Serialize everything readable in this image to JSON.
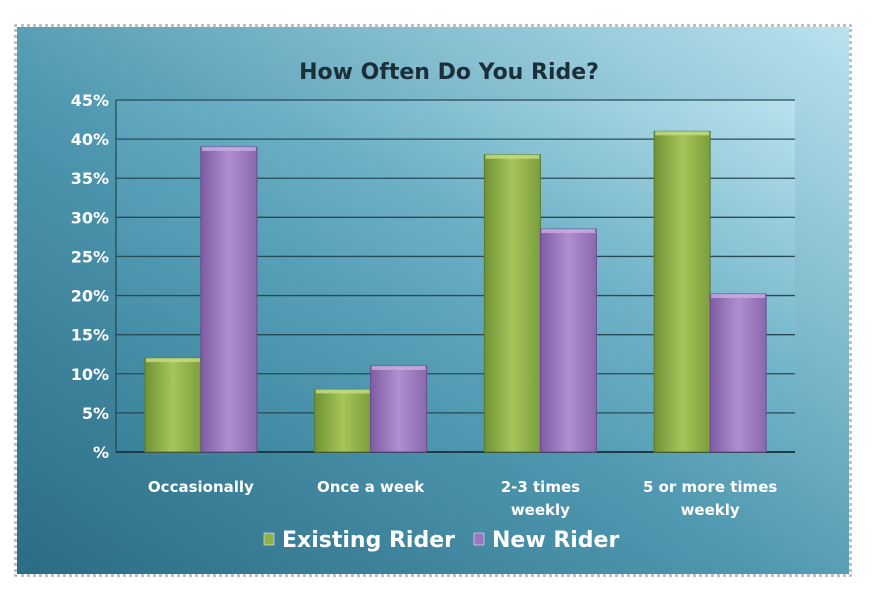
{
  "chart_data": {
    "type": "bar",
    "title": "How Often Do You Ride?",
    "categories": [
      "Occasionally",
      "Once a week",
      "2-3 times weekly",
      "5 or more times weekly"
    ],
    "category_lines": [
      [
        "Occasionally"
      ],
      [
        "Once a week"
      ],
      [
        "2-3 times",
        "weekly"
      ],
      [
        "5 or more times",
        "weekly"
      ]
    ],
    "series": [
      {
        "name": "Existing Rider",
        "color": "#8fb04a",
        "values": [
          12,
          8,
          38,
          41
        ]
      },
      {
        "name": "New Rider",
        "color": "#9b76bd",
        "values": [
          39,
          11,
          28.5,
          20.2
        ]
      }
    ],
    "y_ticks": [
      "%",
      "5%",
      "10%",
      "15%",
      "20%",
      "25%",
      "30%",
      "35%",
      "40%",
      "45%"
    ],
    "ylim": [
      0,
      45
    ],
    "ystep": 5,
    "xlabel": "",
    "ylabel": "",
    "grid": true,
    "legend": "bottom"
  }
}
